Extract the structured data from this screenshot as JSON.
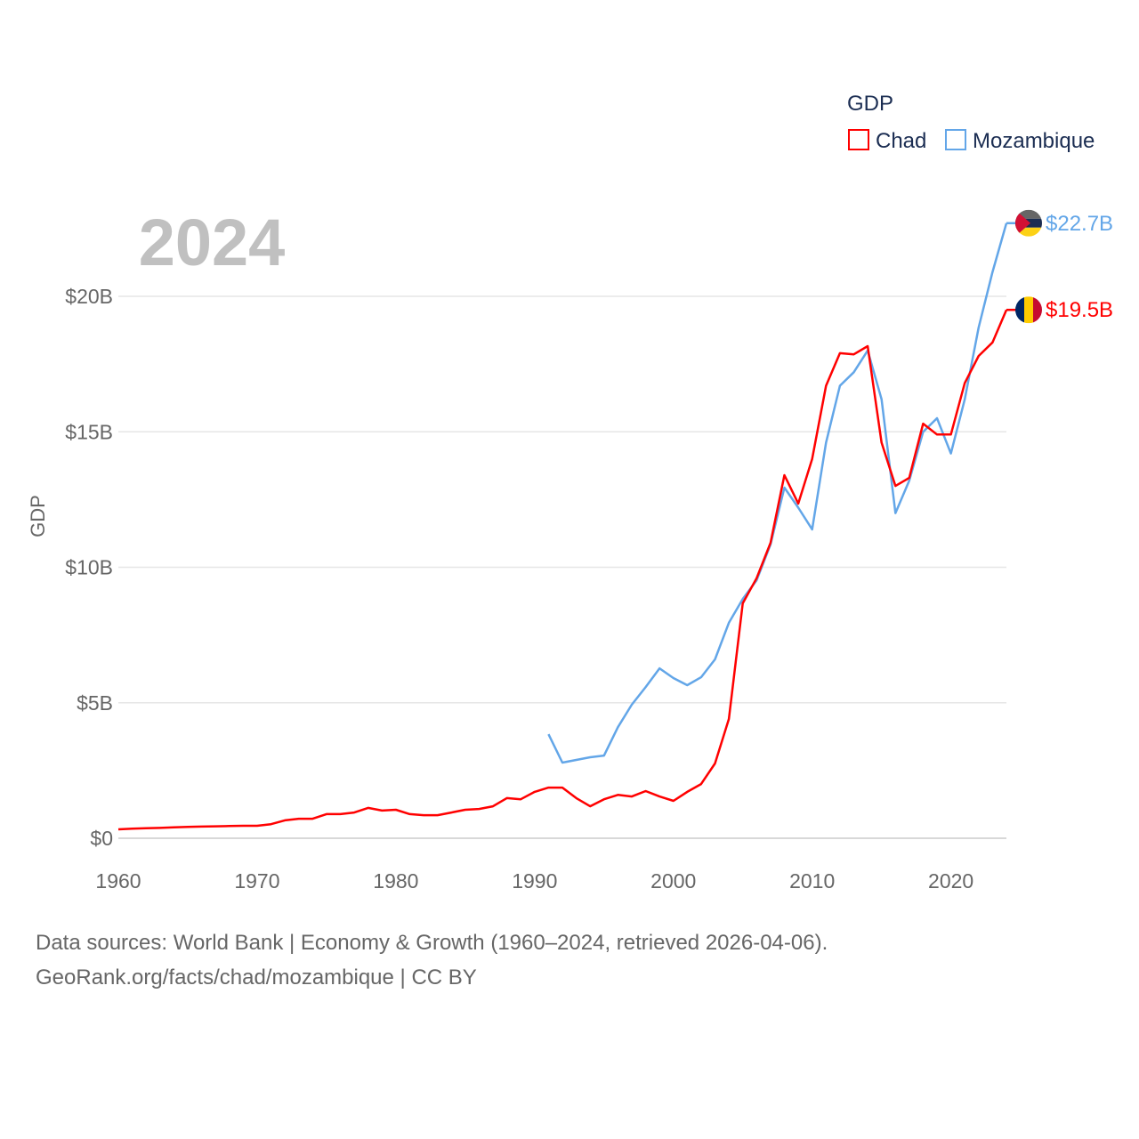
{
  "chart_data": {
    "type": "line",
    "year_label": "2024",
    "ylabel": "GDP",
    "legend_title": "GDP",
    "legend_position": "top-right",
    "xlim": [
      1960,
      2024
    ],
    "ylim": [
      0,
      20
    ],
    "x_ticks": [
      1960,
      1970,
      1980,
      1990,
      2000,
      2010,
      2020
    ],
    "y_ticks": [
      {
        "v": 0,
        "label": "$0"
      },
      {
        "v": 5,
        "label": "$5B"
      },
      {
        "v": 10,
        "label": "$10B"
      },
      {
        "v": 15,
        "label": "$15B"
      },
      {
        "v": 20,
        "label": "$20B"
      }
    ],
    "grid": true,
    "series": [
      {
        "name": "Chad",
        "color": "#ff0000",
        "end_label": "$19.5B",
        "flag": "chad-flag",
        "start_year": 1960,
        "values": [
          0.33,
          0.35,
          0.37,
          0.38,
          0.4,
          0.42,
          0.43,
          0.44,
          0.45,
          0.46,
          0.46,
          0.52,
          0.66,
          0.72,
          0.72,
          0.89,
          0.89,
          0.95,
          1.12,
          1.02,
          1.05,
          0.89,
          0.85,
          0.85,
          0.95,
          1.05,
          1.08,
          1.18,
          1.48,
          1.44,
          1.71,
          1.87,
          1.87,
          1.48,
          1.18,
          1.44,
          1.6,
          1.54,
          1.74,
          1.54,
          1.38,
          1.71,
          2.0,
          2.76,
          4.4,
          8.67,
          9.6,
          10.9,
          13.4,
          12.35,
          14.0,
          16.7,
          17.9,
          17.86,
          18.16,
          14.6,
          13.0,
          13.3,
          15.3,
          14.9,
          14.9,
          16.8,
          17.8,
          18.3,
          19.5
        ]
      },
      {
        "name": "Mozambique",
        "color": "#63a6e8",
        "end_label": "$22.7B",
        "flag": "mozambique-flag",
        "start_year": 1991,
        "values": [
          3.84,
          2.79,
          2.89,
          2.99,
          3.05,
          4.1,
          4.93,
          5.58,
          6.27,
          5.91,
          5.65,
          5.94,
          6.6,
          7.95,
          8.83,
          9.52,
          10.84,
          12.94,
          12.2,
          11.4,
          14.6,
          16.7,
          17.2,
          18.0,
          16.2,
          12.0,
          13.2,
          15.0,
          15.5,
          14.2,
          16.2,
          18.85,
          20.9,
          22.7
        ]
      }
    ]
  },
  "footer": {
    "line1": "Data sources: World Bank | Economy & Growth (1960–2024, retrieved 2026-04-06).",
    "line2": "GeoRank.org/facts/chad/mozambique | CC BY"
  }
}
